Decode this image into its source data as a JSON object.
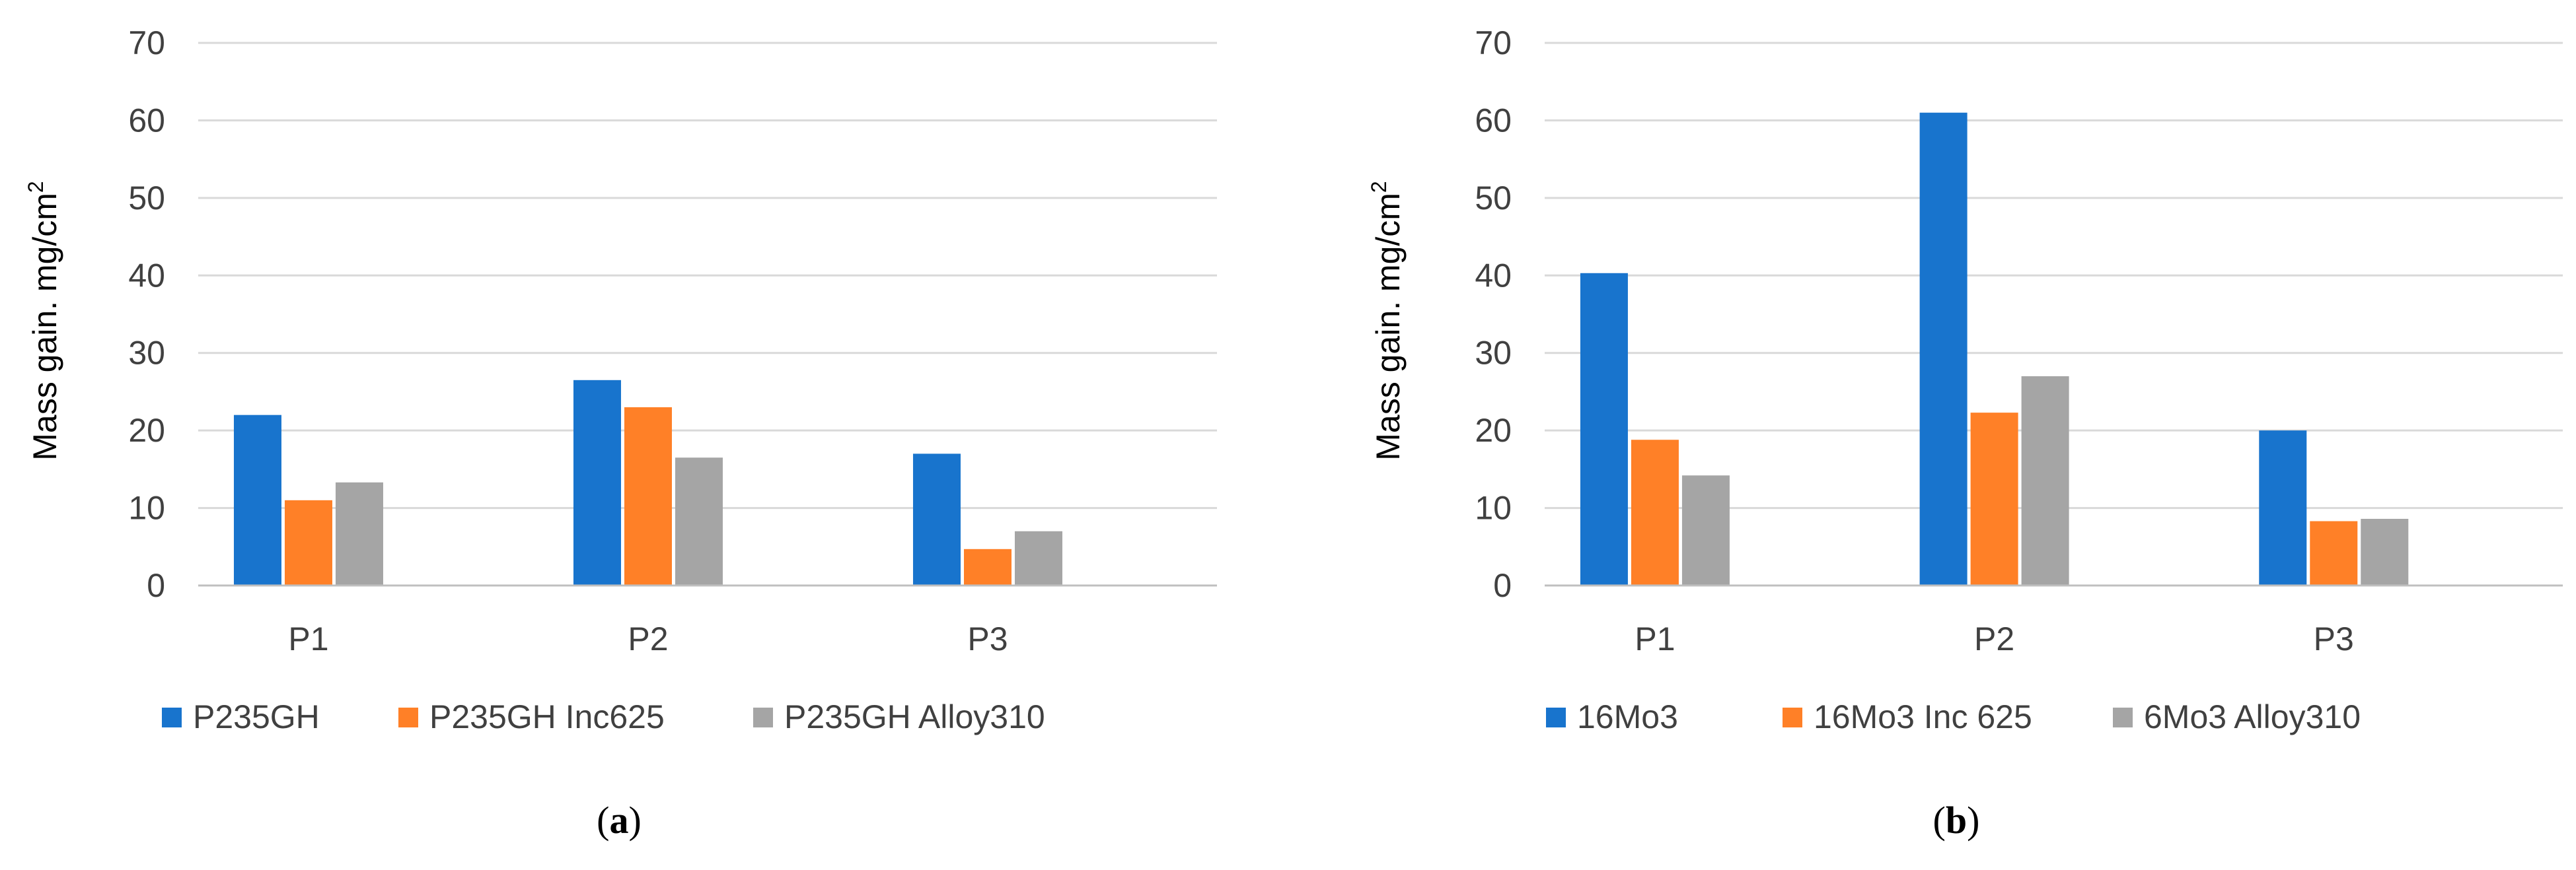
{
  "colors": {
    "series1": "#1874CD",
    "series2": "#FF8027",
    "series3": "#A5A5A5",
    "grid": "#D9D9D9",
    "axis": "#BFBFBF"
  },
  "chart_data": [
    {
      "type": "bar",
      "panel": "a",
      "caption_open": "(",
      "caption_letter": "a",
      "caption_close": ")",
      "ylabel_main": "Mass gain. mg/cm",
      "ylabel_sup": "2",
      "categories": [
        "P1",
        "P2",
        "P3"
      ],
      "ylim": [
        0,
        70
      ],
      "yticks": [
        0,
        10,
        20,
        30,
        40,
        50,
        60,
        70
      ],
      "grid": true,
      "legend_position": "bottom",
      "series": [
        {
          "name": "P235GH",
          "values": [
            22,
            26.5,
            17
          ]
        },
        {
          "name": "P235GH Inc625",
          "values": [
            11,
            23,
            4.7
          ]
        },
        {
          "name": "P235GH Alloy310",
          "values": [
            13.3,
            16.5,
            7
          ]
        }
      ]
    },
    {
      "type": "bar",
      "panel": "b",
      "caption_open": "(",
      "caption_letter": "b",
      "caption_close": ")",
      "ylabel_main": "Mass gain. mg/cm",
      "ylabel_sup": "2",
      "categories": [
        "P1",
        "P2",
        "P3"
      ],
      "ylim": [
        0,
        70
      ],
      "yticks": [
        0,
        10,
        20,
        30,
        40,
        50,
        60,
        70
      ],
      "grid": true,
      "legend_position": "bottom",
      "series": [
        {
          "name": "16Mo3",
          "values": [
            40.3,
            61,
            20
          ]
        },
        {
          "name": "16Mo3 Inc 625",
          "values": [
            18.8,
            22.3,
            8.3
          ]
        },
        {
          "name": "6Mo3 Alloy310",
          "values": [
            14.2,
            27,
            8.6
          ]
        }
      ]
    }
  ]
}
